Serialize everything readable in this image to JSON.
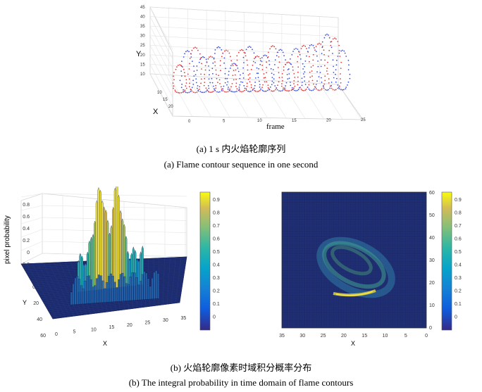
{
  "figure_a": {
    "axis_labels": {
      "y": "Y",
      "x": "X",
      "frame": "frame"
    },
    "y_ticks": [
      "10",
      "15",
      "20",
      "25",
      "30",
      "35",
      "40",
      "45"
    ],
    "x_ticks": [
      "10",
      "15",
      "20"
    ],
    "frame_ticks": [
      "0",
      "5",
      "10",
      "15",
      "20",
      "25"
    ],
    "caption_cn": "(a) 1 s 内火焰轮廓序列",
    "caption_en": "(a) Flame contour sequence in one second",
    "series_colors": [
      "#e03c3c",
      "#3c4ee0"
    ]
  },
  "figure_b_left": {
    "zlabel": "pixel probability",
    "xlabel": "X",
    "ylabel": "Y",
    "z_ticks": [
      "0.8",
      "0.6",
      "0.4",
      "0.2",
      "0",
      "-0.2"
    ],
    "x_ticks": [
      "0",
      "5",
      "10",
      "15",
      "20",
      "25",
      "30",
      "35"
    ],
    "y_ticks": [
      "0",
      "20",
      "40",
      "60"
    ],
    "colorbar_ticks": [
      "0.9",
      "0.8",
      "0.7",
      "0.6",
      "0.5",
      "0.4",
      "0.3",
      "0.2",
      "0.1",
      "0"
    ]
  },
  "figure_b_right": {
    "xlabel": "X",
    "ylabel": "Y",
    "x_ticks": [
      "35",
      "30",
      "25",
      "20",
      "15",
      "10",
      "5",
      "0"
    ],
    "y_ticks": [
      "60",
      "50",
      "40",
      "30",
      "20",
      "10",
      "0"
    ],
    "colorbar_ticks": [
      "0.9",
      "0.8",
      "0.7",
      "0.6",
      "0.5",
      "0.4",
      "0.3",
      "0.2",
      "0.1",
      "0"
    ]
  },
  "captions_b": {
    "cn": "(b)  火焰轮廓像素时域积分概率分布",
    "en": "(b) The integral probability in time domain of flame contours"
  }
}
